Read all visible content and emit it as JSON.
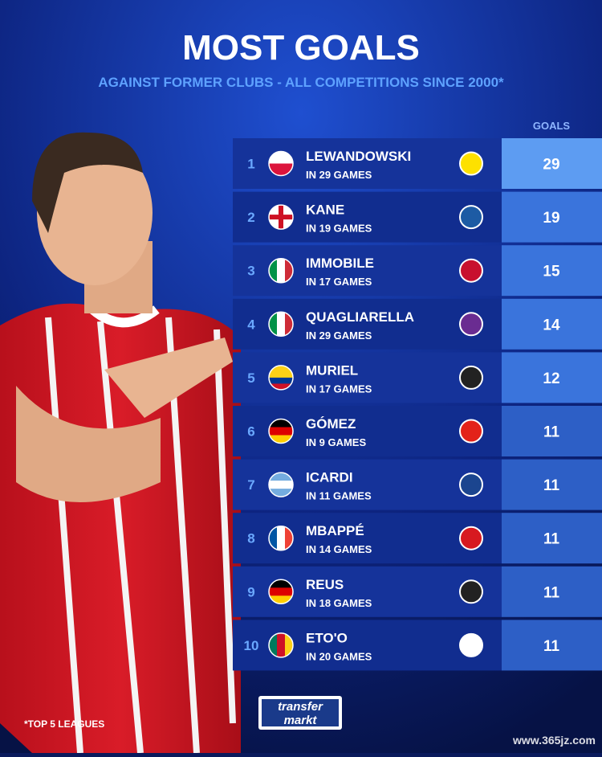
{
  "header": {
    "title": "MOST GOALS",
    "subtitle": "AGAINST FORMER CLUBS - ALL COMPETITIONS SINCE 2000*",
    "column": "GOALS"
  },
  "table": {
    "rows": [
      {
        "rank": "1",
        "name": "LEWANDOWSKI",
        "games": "IN 29 GAMES",
        "goals": 29
      },
      {
        "rank": "2",
        "name": "KANE",
        "games": "IN 19 GAMES",
        "goals": 19
      },
      {
        "rank": "3",
        "name": "IMMOBILE",
        "games": "IN 17 GAMES",
        "goals": 15
      },
      {
        "rank": "4",
        "name": "QUAGLIARELLA",
        "games": "IN 29 GAMES",
        "goals": 14
      },
      {
        "rank": "5",
        "name": "MURIEL",
        "games": "IN 17 GAMES",
        "goals": 12
      },
      {
        "rank": "6",
        "name": "GÓMEZ",
        "games": "IN 9 GAMES",
        "goals": 11
      },
      {
        "rank": "7",
        "name": "ICARDI",
        "games": "IN 11 GAMES",
        "goals": 11
      },
      {
        "rank": "8",
        "name": "MBAPPÉ",
        "games": "IN 14 GAMES",
        "goals": 11
      },
      {
        "rank": "9",
        "name": "REUS",
        "games": "IN 18 GAMES",
        "goals": 11
      },
      {
        "rank": "10",
        "name": "ETO'O",
        "games": "IN 20 GAMES",
        "goals": 11
      }
    ]
  },
  "footer": {
    "note": "*TOP 5 LEAGUES",
    "logo_top": "transfer",
    "logo_bottom": "markt",
    "watermark": "www.365jz.com"
  }
}
